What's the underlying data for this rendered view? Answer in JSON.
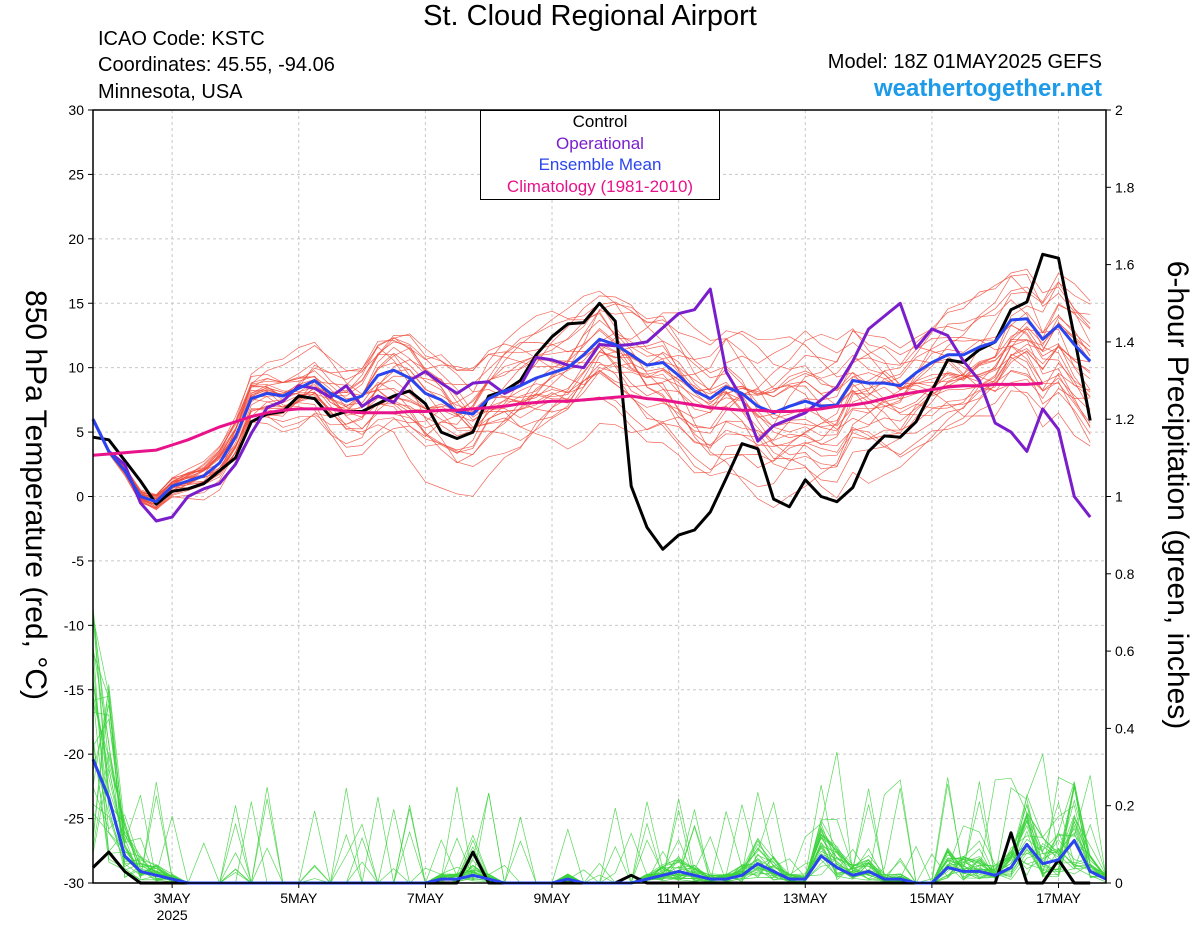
{
  "header": {
    "title": "St. Cloud Regional Airport",
    "icao": "ICAO Code: KSTC",
    "coordinates": "Coordinates: 45.55, -94.06",
    "location": "Minnesota, USA",
    "model": "Model: 18Z 01MAY2025 GEFS",
    "site": "weathertogether.net"
  },
  "legend": {
    "control": "Control",
    "operational": "Operational",
    "ensemble_mean": "Ensemble Mean",
    "climatology": "Climatology (1981-2010)"
  },
  "colors": {
    "control": "#000000",
    "operational": "#7a1ecc",
    "ensemble_mean": "#2a45ee",
    "climatology": "#e8138a",
    "members_temp": "#f04a3a",
    "members_precip": "#3bd23b",
    "site": "#1e9be8",
    "grid": "#c8c8c8"
  },
  "chart_data": {
    "type": "line",
    "x_unit": "hours after 18Z 01MAY2025 (6-hourly)",
    "xlim": [
      0,
      384
    ],
    "x_ticks": [
      {
        "hour": 30,
        "label": "3MAY",
        "sublabel": "2025"
      },
      {
        "hour": 78,
        "label": "5MAY"
      },
      {
        "hour": 126,
        "label": "7MAY"
      },
      {
        "hour": 174,
        "label": "9MAY"
      },
      {
        "hour": 222,
        "label": "11MAY"
      },
      {
        "hour": 270,
        "label": "13MAY"
      },
      {
        "hour": 318,
        "label": "15MAY"
      },
      {
        "hour": 366,
        "label": "17MAY"
      }
    ],
    "y_left": {
      "label": "850 hPa Temperature (red, °C)",
      "ylim": [
        -30,
        30
      ],
      "ticks": [
        -30,
        -25,
        -20,
        -15,
        -10,
        -5,
        0,
        5,
        10,
        15,
        20,
        25,
        30
      ]
    },
    "y_right": {
      "label": "6-hour Precipitation (green, inches)",
      "ylim": [
        0,
        2
      ],
      "ticks": [
        "0",
        "0.2",
        "0.4",
        "0.6",
        "0.8",
        "1",
        "1.2",
        "1.4",
        "1.6",
        "1.8",
        "2"
      ]
    },
    "grid": true,
    "temperature_series": [
      {
        "name": "Control",
        "values": [
          4.6,
          4.4,
          2.8,
          1.2,
          -0.6,
          0.4,
          0.6,
          1,
          2,
          3,
          5.8,
          6.4,
          6.6,
          7.8,
          7.6,
          6.2,
          6.6,
          6.6,
          7.2,
          7.8,
          8.2,
          7.2,
          5,
          4.5,
          5,
          7.8,
          8.2,
          9,
          11,
          12.4,
          13.4,
          13.5,
          15,
          13.6,
          0.8,
          -2.4,
          -4.1,
          -3,
          -2.6,
          -1.2,
          1.4,
          4.1,
          3.7,
          -0.2,
          -0.8,
          1.3,
          0,
          -0.4,
          0.7,
          3.5,
          4.7,
          4.6,
          5.8,
          8.2,
          10.6,
          10.4,
          11.4,
          12,
          14.5,
          15.1,
          18.8,
          18.5,
          12.4,
          5.9
        ]
      },
      {
        "name": "Operational",
        "values": [
          6,
          3.5,
          2.5,
          -0.5,
          -1.9,
          -1.6,
          0,
          0.6,
          1,
          2.5,
          4.9,
          6.9,
          7.4,
          8.6,
          8.4,
          7.7,
          8.6,
          7,
          7.8,
          7.3,
          9,
          9.7,
          8.8,
          8,
          8.8,
          8.9,
          8,
          8.6,
          10.8,
          10.6,
          10.2,
          10,
          11.8,
          11.7,
          11.8,
          12,
          13.1,
          14.2,
          14.5,
          16.1,
          9.7,
          7.6,
          4.3,
          5.5,
          6,
          6.5,
          7.5,
          8.5,
          10.5,
          13,
          14,
          15,
          11.5,
          13,
          12.5,
          10.5,
          9,
          5.7,
          5,
          3.5,
          6.8,
          5.2,
          0,
          -1.6
        ]
      },
      {
        "name": "Ensemble Mean",
        "values": [
          6,
          3.5,
          2,
          0,
          -0.4,
          0.8,
          1.2,
          1.6,
          2.6,
          4.6,
          7.6,
          8,
          7.8,
          8.4,
          9,
          8,
          7.4,
          7.8,
          9.4,
          9.8,
          9.2,
          8,
          7.5,
          6.6,
          6.4,
          7.6,
          8.2,
          8.6,
          9.2,
          9.6,
          10,
          11,
          12.2,
          11.8,
          11,
          10.2,
          10.4,
          9.4,
          8.2,
          7.6,
          8.5,
          8,
          7,
          6.5,
          7,
          7.4,
          7,
          7.1,
          9,
          8.8,
          8.8,
          8.6,
          9.6,
          10.4,
          11,
          11,
          11.6,
          12,
          13.7,
          13.8,
          12.2,
          13.3,
          11.8,
          10.5
        ]
      },
      {
        "name": "Climatology (1981-2010)",
        "values": [
          3.2,
          3.3,
          3.4,
          3.5,
          3.6,
          4,
          4.4,
          4.9,
          5.4,
          5.8,
          6.2,
          6.5,
          6.7,
          6.8,
          6.8,
          6.8,
          6.6,
          6.5,
          6.5,
          6.5,
          6.6,
          6.6,
          6.7,
          6.7,
          6.8,
          6.9,
          7,
          7.2,
          7.3,
          7.4,
          7.4,
          7.5,
          7.6,
          7.7,
          7.8,
          7.6,
          7.5,
          7.3,
          7.1,
          6.9,
          6.8,
          6.7,
          6.7,
          6.6,
          6.6,
          6.7,
          6.8,
          7,
          7.1,
          7.3,
          7.6,
          7.9,
          8.1,
          8.3,
          8.5,
          8.6,
          8.6,
          8.7,
          8.7,
          8.7,
          8.8
        ]
      }
    ],
    "precip_series": [
      {
        "name": "Control",
        "values": [
          0.04,
          0.08,
          0.03,
          0,
          0,
          0,
          0,
          0,
          0,
          0,
          0,
          0,
          0,
          0,
          0,
          0,
          0,
          0,
          0,
          0,
          0,
          0,
          0,
          0,
          0.08,
          0,
          0,
          0,
          0,
          0,
          0,
          0,
          0,
          0,
          0.02,
          0,
          0,
          0,
          0,
          0,
          0,
          0,
          0,
          0,
          0,
          0,
          0,
          0,
          0,
          0,
          0,
          0,
          0,
          0,
          0,
          0,
          0,
          0,
          0.13,
          0,
          0,
          0.06,
          0,
          0
        ]
      },
      {
        "name": "Ensemble Mean",
        "values": [
          0.32,
          0.22,
          0.07,
          0.03,
          0.02,
          0.01,
          0,
          0,
          0,
          0,
          0,
          0,
          0,
          0,
          0,
          0,
          0,
          0,
          0,
          0,
          0,
          0,
          0.01,
          0.01,
          0.02,
          0.01,
          0,
          0,
          0,
          0,
          0.01,
          0,
          0,
          0,
          0,
          0.01,
          0.02,
          0.03,
          0.02,
          0.01,
          0.01,
          0.02,
          0.05,
          0.03,
          0.01,
          0.01,
          0.07,
          0.04,
          0.02,
          0.03,
          0.01,
          0.01,
          0,
          0,
          0.04,
          0.03,
          0.03,
          0.02,
          0.04,
          0.1,
          0.05,
          0.06,
          0.11,
          0.03,
          0.01
        ]
      }
    ]
  }
}
